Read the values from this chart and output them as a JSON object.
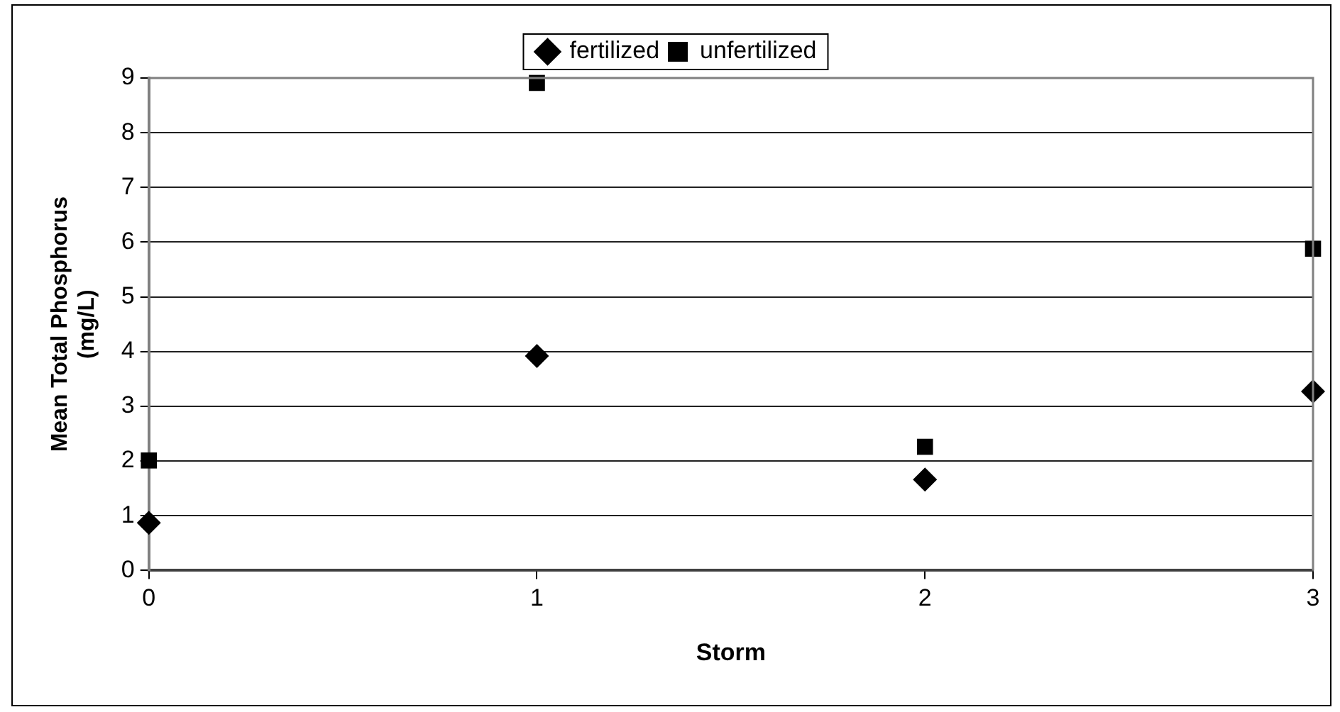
{
  "chart_data": {
    "type": "scatter",
    "xlabel": "Storm",
    "ylabel": "Mean Total Phosphorus\n(mg/L)",
    "x": [
      0,
      1,
      2,
      3
    ],
    "series": [
      {
        "name": "fertilized",
        "color": "#000000",
        "marker": "diamond",
        "values": [
          0.87,
          3.92,
          1.66,
          3.27
        ]
      },
      {
        "name": "unfertilized",
        "color": "#000000",
        "marker": "square",
        "values": [
          2.01,
          8.91,
          2.26,
          5.88
        ]
      }
    ],
    "xlim": [
      0,
      3
    ],
    "xticks": [
      0,
      1,
      2,
      3
    ],
    "ylim": [
      0,
      9
    ],
    "yticks": [
      0,
      1,
      2,
      3,
      4,
      5,
      6,
      7,
      8,
      9
    ],
    "grid": "y",
    "legend": "top"
  }
}
